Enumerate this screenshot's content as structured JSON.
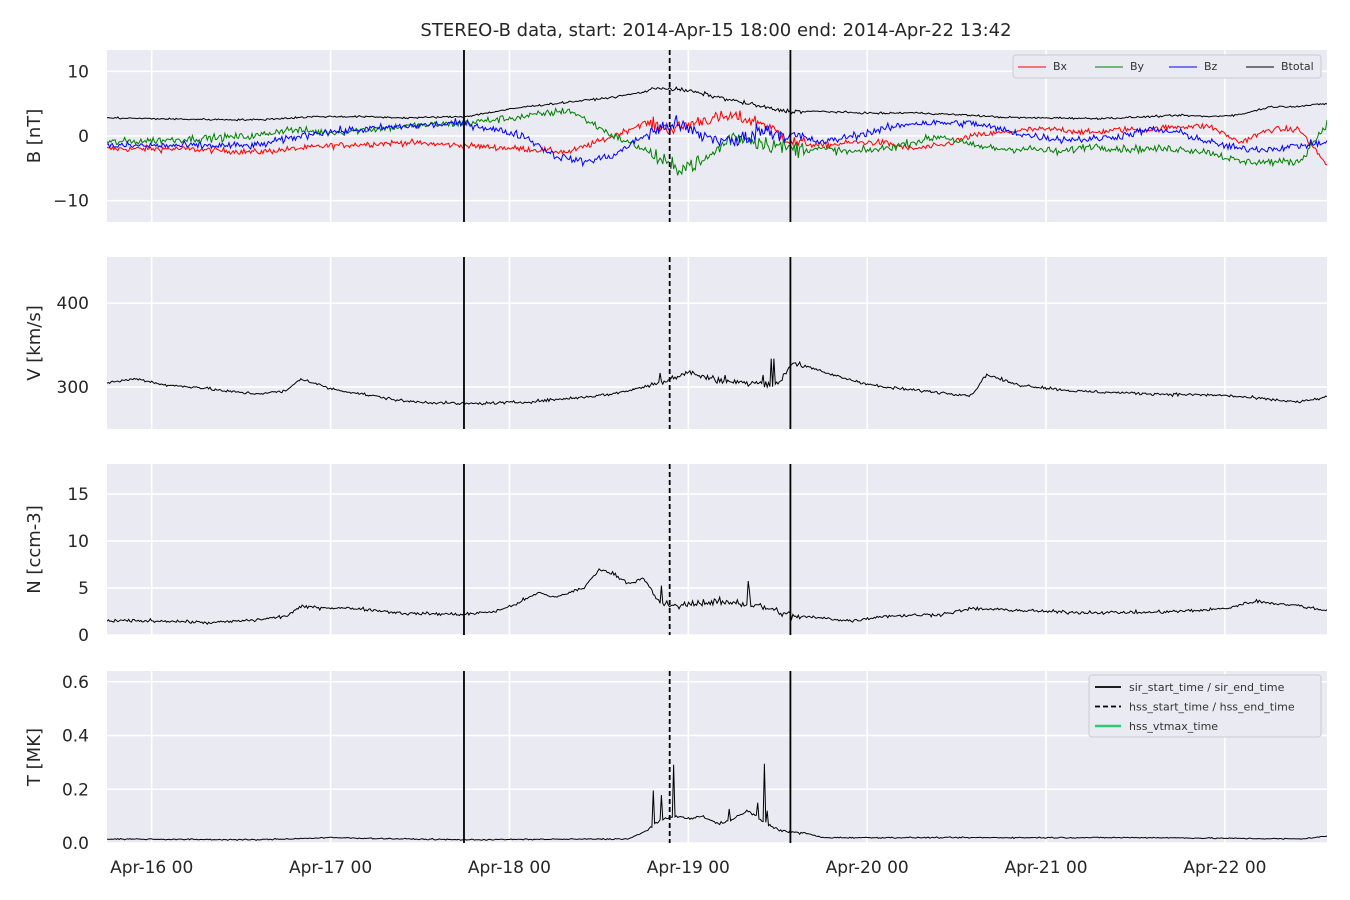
{
  "chart_data": {
    "type": "line",
    "title": "STEREO-B data, start: 2014-Apr-15 18:00  end: 2014-Apr-22 13:42",
    "x_range_hours": [
      0,
      163.7
    ],
    "x_ticks": [
      {
        "hour": 6,
        "label": "Apr-16 00"
      },
      {
        "hour": 30,
        "label": "Apr-17 00"
      },
      {
        "hour": 54,
        "label": "Apr-18 00"
      },
      {
        "hour": 78,
        "label": "Apr-19 00"
      },
      {
        "hour": 102,
        "label": "Apr-20 00"
      },
      {
        "hour": 126,
        "label": "Apr-21 00"
      },
      {
        "hour": 150,
        "label": "Apr-22 00"
      }
    ],
    "events": {
      "sir_start_time": 47.9,
      "hss_start_time": 75.5,
      "sir_end_time": 91.7
    },
    "panels": [
      {
        "id": "B",
        "ylabel": "B [nT]",
        "ylim": [
          -13.3,
          13.3
        ],
        "yticks": [
          {
            "v": 10,
            "label": "10"
          },
          {
            "v": 0,
            "label": "0"
          },
          {
            "v": -10,
            "label": "−10"
          }
        ],
        "legend": "top-right",
        "series": [
          {
            "name": "Bx",
            "color": "#ff0000",
            "noise": 0.8,
            "x": [
              0,
              10,
              20,
              30,
              40,
              48,
              56,
              62,
              68,
              72,
              76,
              80,
              84,
              88,
              92,
              96,
              100,
              104,
              108,
              112,
              116,
              120,
              124,
              128,
              132,
              136,
              140,
              144,
              148,
              152,
              156,
              160,
              163.7
            ],
            "y": [
              -2,
              -2,
              -2.5,
              -1.5,
              -1,
              -1.5,
              -2,
              -2.5,
              0,
              2,
              1,
              2.5,
              3,
              2,
              -1,
              -1.5,
              -1,
              -1,
              -2,
              -1.5,
              0,
              0.5,
              1,
              1,
              0.5,
              1,
              1,
              1.5,
              1.5,
              -1,
              1,
              1,
              -4.5
            ]
          },
          {
            "name": "By",
            "color": "#008000",
            "noise": 1.0,
            "x": [
              0,
              10,
              20,
              24,
              30,
              40,
              48,
              56,
              62,
              68,
              72,
              76,
              80,
              84,
              88,
              92,
              96,
              100,
              104,
              108,
              112,
              116,
              120,
              124,
              128,
              132,
              136,
              140,
              144,
              148,
              152,
              156,
              160,
              163.7
            ],
            "y": [
              -1,
              -0.5,
              0,
              1,
              0.5,
              1.5,
              2,
              3,
              4,
              0,
              -2,
              -5,
              -4,
              0,
              -1,
              -2,
              -2,
              -2.5,
              -2,
              -1,
              0,
              -1.5,
              -2,
              -2,
              -2.5,
              -1.5,
              -2,
              -2,
              -2,
              -2.5,
              -4,
              -4,
              -4,
              2
            ]
          },
          {
            "name": "Bz",
            "color": "#0000ff",
            "noise": 1.0,
            "x": [
              0,
              10,
              20,
              28,
              34,
              40,
              48,
              56,
              60,
              64,
              68,
              72,
              76,
              80,
              84,
              88,
              92,
              96,
              100,
              104,
              108,
              112,
              116,
              120,
              124,
              128,
              132,
              136,
              140,
              144,
              148,
              152,
              156,
              160,
              163.7
            ],
            "y": [
              -1.5,
              -1.5,
              -1.5,
              0.5,
              1,
              1.5,
              2,
              0,
              -3,
              -4,
              -3,
              0,
              2,
              0,
              -1,
              1,
              0,
              -1,
              0,
              1,
              2,
              2,
              2,
              1,
              0,
              -0.5,
              -0.5,
              0,
              1,
              0.5,
              -1,
              -2,
              -2,
              -1.5,
              -1
            ]
          },
          {
            "name": "Btotal",
            "color": "#000000",
            "noise": 0.25,
            "x": [
              0,
              10,
              20,
              28,
              34,
              40,
              48,
              56,
              60,
              64,
              68,
              72,
              74,
              78,
              82,
              86,
              90,
              92,
              96,
              100,
              104,
              108,
              112,
              116,
              120,
              124,
              128,
              132,
              136,
              140,
              144,
              148,
              152,
              156,
              160,
              163.7
            ],
            "y": [
              2.8,
              2.6,
              2.5,
              3,
              3,
              2.8,
              3,
              4.5,
              5,
              5.5,
              6,
              6.8,
              7.5,
              7,
              6,
              5,
              4,
              3.8,
              3.8,
              3.6,
              3.5,
              3.6,
              3.4,
              3.2,
              2.9,
              2.8,
              2.8,
              2.7,
              2.8,
              3,
              3.2,
              3,
              3.3,
              4.5,
              4.6,
              5
            ]
          }
        ]
      },
      {
        "id": "V",
        "ylabel": "V [km/s]",
        "ylim": [
          250,
          455
        ],
        "yticks": [
          {
            "v": 400,
            "label": "400"
          },
          {
            "v": 300,
            "label": "300"
          }
        ],
        "series": [
          {
            "name": "V",
            "color": "#000000",
            "noise": 3,
            "x": [
              0,
              4,
              8,
              12,
              16,
              20,
              24,
              26,
              30,
              34,
              40,
              48,
              56,
              64,
              68,
              72,
              74,
              78,
              80,
              84,
              88,
              90,
              92,
              96,
              100,
              104,
              110,
              116,
              118,
              122,
              130,
              140,
              150,
              160,
              163.7
            ],
            "y": [
              305,
              310,
              302,
              300,
              295,
              292,
              295,
              310,
              298,
              292,
              283,
              280,
              282,
              288,
              292,
              300,
              305,
              318,
              312,
              305,
              305,
              303,
              330,
              318,
              308,
              300,
              295,
              290,
              315,
              303,
              295,
              292,
              290,
              282,
              288
            ]
          }
        ]
      },
      {
        "id": "N",
        "ylabel": "N [ccm-3]",
        "ylim": [
          0,
          18.2
        ],
        "yticks": [
          {
            "v": 15,
            "label": "15"
          },
          {
            "v": 10,
            "label": "10"
          },
          {
            "v": 5,
            "label": "5"
          },
          {
            "v": 0,
            "label": "0"
          }
        ],
        "series": [
          {
            "name": "N",
            "color": "#000000",
            "noise": 0.3,
            "x": [
              0,
              8,
              14,
              20,
              24,
              26,
              30,
              34,
              40,
              48,
              52,
              54,
              58,
              60,
              64,
              66,
              68,
              70,
              72,
              74,
              76,
              80,
              84,
              88,
              92,
              96,
              100,
              104,
              108,
              112,
              116,
              120,
              126,
              130,
              140,
              146,
              150,
              154,
              160,
              163.7
            ],
            "y": [
              1.5,
              1.5,
              1.3,
              1.6,
              2,
              3,
              2.9,
              2.8,
              2.3,
              2.2,
              2.5,
              3,
              4.5,
              4,
              5,
              7,
              6.5,
              5.5,
              6,
              3.5,
              3,
              3.5,
              3.5,
              3,
              2,
              1.8,
              1.5,
              2,
              2.1,
              2.2,
              2.8,
              2.7,
              2.5,
              2.4,
              2.4,
              2.6,
              2.8,
              3.6,
              3.1,
              2.6
            ]
          }
        ]
      },
      {
        "id": "T",
        "ylabel": "T [MK]",
        "ylim": [
          0,
          0.64
        ],
        "yticks": [
          {
            "v": 0.6,
            "label": "0.6"
          },
          {
            "v": 0.4,
            "label": "0.4"
          },
          {
            "v": 0.2,
            "label": "0.2"
          },
          {
            "v": 0,
            "label": "0.0"
          }
        ],
        "legend": "top-right",
        "legend_entries": [
          {
            "label": "sir_start_time / sir_end_time",
            "style": "solid",
            "color": "#000000"
          },
          {
            "label": "hss_start_time / hss_end_time",
            "style": "dashed",
            "color": "#000000"
          },
          {
            "label": "hss_vtmax_time",
            "style": "solid",
            "color": "#2ecc71"
          }
        ],
        "series": [
          {
            "name": "T",
            "color": "#000000",
            "noise": 0.004,
            "x": [
              0,
              20,
              30,
              40,
              48,
              60,
              70,
              72,
              74,
              76,
              78,
              80,
              82,
              84,
              86,
              88,
              90,
              92,
              94,
              96,
              100,
              110,
              120,
              140,
              160,
              163.7
            ],
            "y": [
              0.015,
              0.012,
              0.02,
              0.015,
              0.012,
              0.014,
              0.015,
              0.04,
              0.08,
              0.1,
              0.09,
              0.1,
              0.07,
              0.09,
              0.12,
              0.08,
              0.05,
              0.04,
              0.035,
              0.02,
              0.02,
              0.02,
              0.02,
              0.02,
              0.015,
              0.025
            ]
          }
        ]
      }
    ]
  }
}
